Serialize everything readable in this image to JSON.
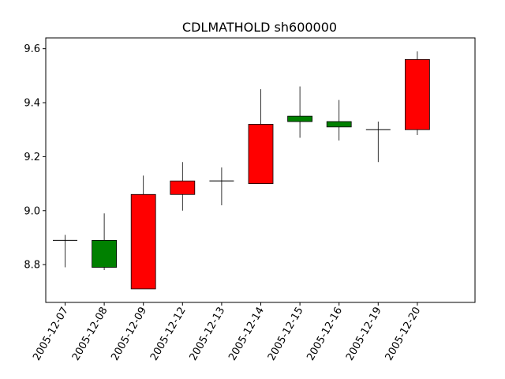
{
  "chart_data": {
    "type": "candlestick",
    "title": "CDLMATHOLD sh600000",
    "xlabel": "",
    "ylabel": "",
    "ylim": [
      8.66,
      9.64
    ],
    "yticks": [
      8.8,
      9.0,
      9.2,
      9.4,
      9.6
    ],
    "ytick_labels": [
      "8.8",
      "9.0",
      "9.2",
      "9.4",
      "9.6"
    ],
    "categories": [
      "2005-12-07",
      "2005-12-08",
      "2005-12-09",
      "2005-12-12",
      "2005-12-13",
      "2005-12-14",
      "2005-12-15",
      "2005-12-16",
      "2005-12-19",
      "2005-12-20"
    ],
    "series": [
      {
        "open": [
          8.89,
          8.89,
          8.71,
          9.06,
          9.11,
          9.1,
          9.35,
          9.33,
          9.3,
          9.3
        ],
        "high": [
          8.91,
          8.99,
          9.13,
          9.18,
          9.16,
          9.45,
          9.46,
          9.41,
          9.33,
          9.59
        ],
        "low": [
          8.79,
          8.78,
          8.71,
          9.0,
          9.02,
          9.1,
          9.27,
          9.26,
          9.18,
          9.28
        ],
        "close": [
          8.89,
          8.79,
          9.06,
          9.11,
          9.11,
          9.32,
          9.33,
          9.31,
          9.3,
          9.56
        ]
      }
    ],
    "colors": {
      "up": "#ff0000",
      "down": "#008000",
      "edge": "#000000"
    },
    "grid": false,
    "legend": "none"
  }
}
